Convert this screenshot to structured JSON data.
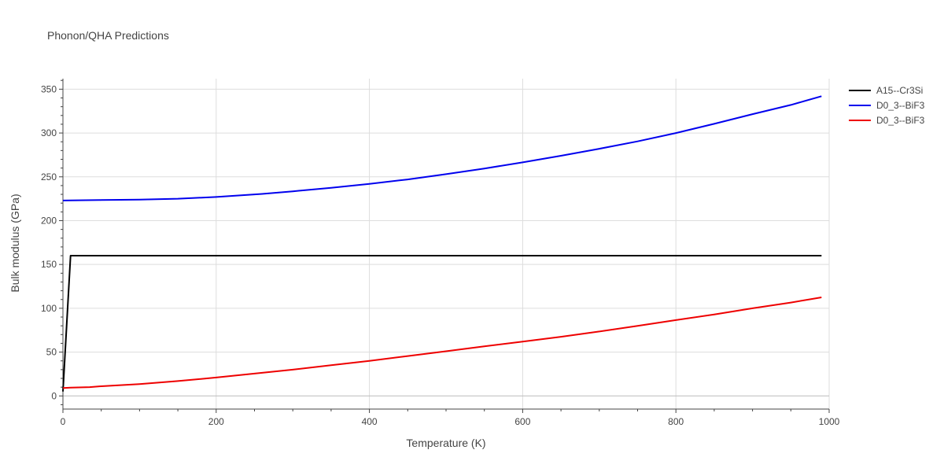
{
  "chart_data": {
    "type": "line",
    "title": "Phonon/QHA Predictions",
    "xlabel": "Temperature (K)",
    "ylabel": "Bulk modulus (GPa)",
    "xlim": [
      0,
      1000
    ],
    "ylim": [
      -15,
      362
    ],
    "xticks": [
      0,
      200,
      400,
      600,
      800,
      1000
    ],
    "yticks": [
      0,
      50,
      100,
      150,
      200,
      250,
      300,
      350
    ],
    "grid": true,
    "legend_position": "top-right",
    "series": [
      {
        "name": "A15--Cr3Si",
        "color": "#000000",
        "x": [
          0,
          10,
          100,
          200,
          300,
          400,
          500,
          600,
          700,
          800,
          900,
          990
        ],
        "y": [
          5,
          160,
          160,
          160,
          160,
          160,
          160,
          160,
          160,
          160,
          160,
          160
        ]
      },
      {
        "name": "D0_3--BiF3",
        "color": "#0000ee",
        "x": [
          0,
          50,
          100,
          150,
          200,
          260,
          300,
          350,
          400,
          450,
          500,
          550,
          600,
          650,
          700,
          750,
          800,
          850,
          900,
          950,
          990
        ],
        "y": [
          223,
          223.5,
          224,
          225,
          227,
          230.5,
          233.5,
          237.5,
          242,
          247,
          253,
          259.5,
          266.5,
          274,
          282,
          290.5,
          300,
          310.5,
          321.5,
          332,
          342
        ]
      },
      {
        "name": "D0_3--BiF3",
        "color": "#ee0000",
        "x": [
          0,
          10,
          35,
          50,
          100,
          150,
          200,
          250,
          300,
          350,
          400,
          450,
          500,
          550,
          600,
          650,
          700,
          750,
          800,
          850,
          900,
          950,
          990
        ],
        "y": [
          9,
          9.5,
          10,
          11,
          13.5,
          17,
          21,
          25.5,
          30,
          35,
          40,
          45.5,
          51,
          56.5,
          62,
          67.5,
          73.5,
          80,
          86.5,
          93,
          100,
          106.5,
          112.5
        ]
      }
    ]
  }
}
